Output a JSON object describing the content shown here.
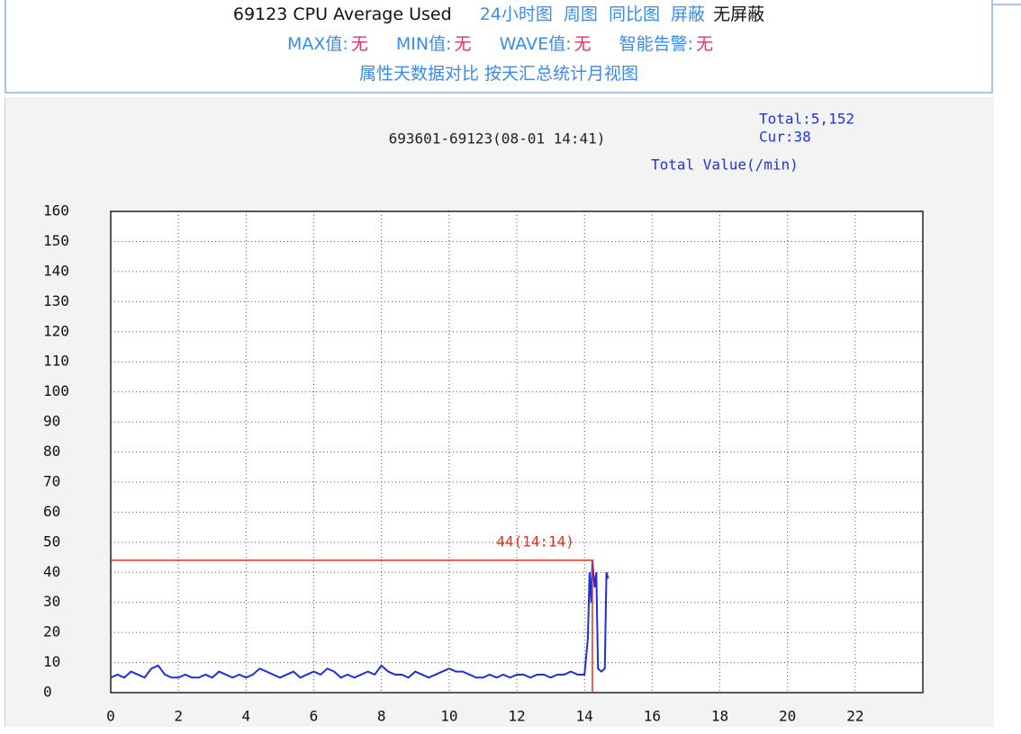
{
  "header": {
    "title": "69123 CPU Average Used",
    "links": [
      "24小时图",
      "周图",
      "同比图",
      "屏蔽"
    ],
    "current": "无屏蔽",
    "stats": [
      {
        "label": "MAX值:",
        "value": "无"
      },
      {
        "label": "MIN值:",
        "value": "无"
      },
      {
        "label": "WAVE值:",
        "value": "无"
      },
      {
        "label": "智能告警:",
        "value": "无"
      }
    ],
    "footer_links": [
      "属性天数据对比",
      "按天汇总统计月视图"
    ]
  },
  "chart_data": {
    "type": "line",
    "title": "693601-69123(08-01 14:41)",
    "total": "Total:5,152",
    "current": "Cur:38",
    "ylabel": "Total Value(/min)",
    "x": [
      0,
      0.2,
      0.4,
      0.6,
      0.8,
      1,
      1.2,
      1.4,
      1.6,
      1.8,
      2,
      2.2,
      2.4,
      2.6,
      2.8,
      3,
      3.2,
      3.4,
      3.6,
      3.8,
      4,
      4.2,
      4.4,
      4.6,
      4.8,
      5,
      5.2,
      5.4,
      5.6,
      5.8,
      6,
      6.2,
      6.4,
      6.6,
      6.8,
      7,
      7.2,
      7.4,
      7.6,
      7.8,
      8,
      8.2,
      8.4,
      8.6,
      8.8,
      9,
      9.2,
      9.4,
      9.6,
      9.8,
      10,
      10.2,
      10.4,
      10.6,
      10.8,
      11,
      11.2,
      11.4,
      11.6,
      11.8,
      12,
      12.2,
      12.4,
      12.6,
      12.8,
      13,
      13.2,
      13.4,
      13.6,
      13.8,
      14,
      14.1,
      14.15,
      14.2,
      14.233,
      14.3,
      14.35,
      14.4,
      14.5,
      14.6,
      14.65,
      14.7
    ],
    "series": [
      {
        "color": "#1f2fe0",
        "values": [
          5,
          6,
          5,
          7,
          6,
          5,
          8,
          9,
          6,
          5,
          5,
          6,
          5,
          5,
          6,
          5,
          7,
          6,
          5,
          6,
          5,
          6,
          8,
          7,
          6,
          5,
          6,
          7,
          5,
          6,
          7,
          6,
          8,
          7,
          5,
          6,
          5,
          6,
          7,
          6,
          9,
          7,
          6,
          6,
          5,
          7,
          6,
          5,
          6,
          7,
          8,
          7,
          7,
          6,
          5,
          5,
          6,
          5,
          6,
          5,
          6,
          6,
          5,
          6,
          6,
          5,
          6,
          6,
          7,
          6,
          6,
          18,
          40,
          30,
          44,
          35,
          40,
          8,
          7,
          8,
          40,
          38
        ]
      }
    ],
    "xlim": [
      0,
      24
    ],
    "ylim": [
      0,
      160
    ],
    "xticks": [
      0,
      2,
      4,
      6,
      8,
      10,
      12,
      14,
      16,
      18,
      20,
      22
    ],
    "yticks": [
      0,
      10,
      20,
      30,
      40,
      50,
      60,
      70,
      80,
      90,
      100,
      110,
      120,
      130,
      140,
      150,
      160
    ],
    "grid": true,
    "annotation": {
      "x": 14.233,
      "y": 44,
      "label": "44(14:14)",
      "color": "#e03020"
    }
  }
}
